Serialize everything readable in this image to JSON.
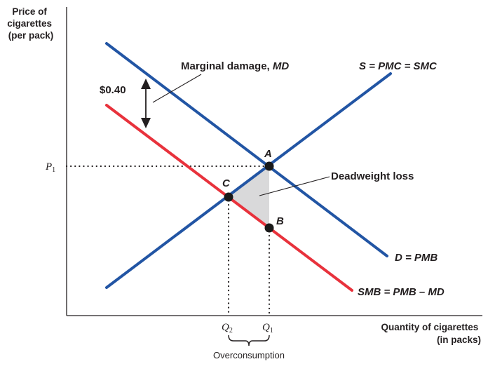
{
  "axes": {
    "y_label_lines": [
      "Price of",
      "cigarettes",
      "(per pack)"
    ],
    "x_label_lines": [
      "Quantity of cigarettes",
      "(in packs)"
    ]
  },
  "price_label": {
    "main": "P",
    "sub": "1"
  },
  "quantity_labels": [
    {
      "main": "Q",
      "sub": "2"
    },
    {
      "main": "Q",
      "sub": "1"
    }
  ],
  "gap_label": "$0.40",
  "md_label": {
    "prefix": "Marginal damage, ",
    "abbr": "MD"
  },
  "curves": {
    "supply": {
      "label": "S = PMC = SMC",
      "color": "#2255a4"
    },
    "demand": {
      "label": "D = PMB",
      "color": "#2255a4"
    },
    "smb": {
      "label": "SMB = PMB – MD",
      "color": "#e8323c"
    }
  },
  "points": {
    "a": "A",
    "b": "B",
    "c": "C"
  },
  "deadweight_label": "Deadweight loss",
  "overconsumption_label": "Overconsumption",
  "colors": {
    "axis": "#231f20",
    "shade": "#d9d9da",
    "dot": "#1a1a1a"
  }
}
